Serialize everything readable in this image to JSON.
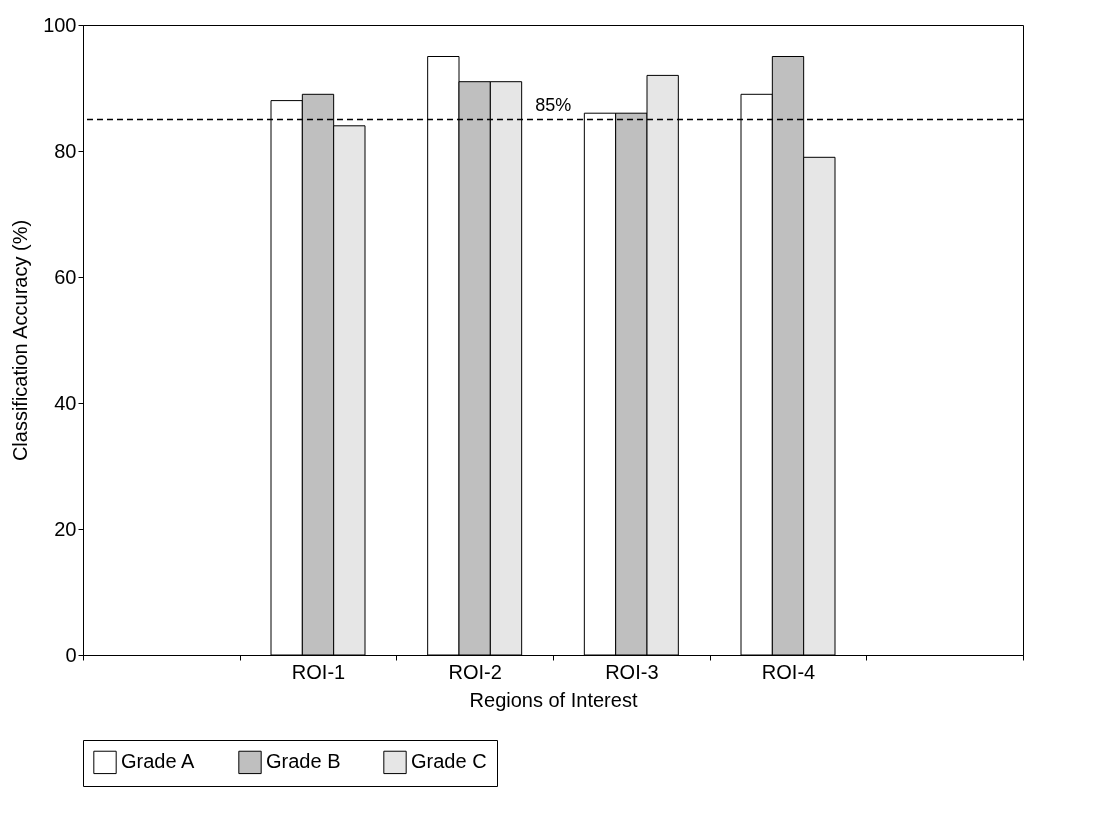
{
  "chart_data": {
    "type": "bar",
    "xlabel": "Regions of Interest",
    "ylabel": "Classification Accuracy (%)",
    "categories": [
      null,
      "ROI-1",
      "ROI-2",
      "ROI-3",
      "ROI-4",
      null
    ],
    "series": [
      {
        "name": "Grade A",
        "color": "#ffffff",
        "values": [
          null,
          88,
          95,
          86,
          89,
          null
        ]
      },
      {
        "name": "Grade B",
        "color": "#bfbfbf",
        "values": [
          null,
          89,
          91,
          86,
          95,
          null
        ]
      },
      {
        "name": "Grade C",
        "color": "#e6e6e6",
        "values": [
          null,
          84,
          91,
          92,
          79,
          null
        ]
      }
    ],
    "ylim": [
      0,
      100
    ],
    "yticks": [
      0,
      20,
      40,
      60,
      80,
      100
    ],
    "ref_lines": [
      {
        "axis": "y",
        "value": 85,
        "label": "85%",
        "line_style": "dashed"
      }
    ],
    "grid": false,
    "legend": "bottom"
  }
}
